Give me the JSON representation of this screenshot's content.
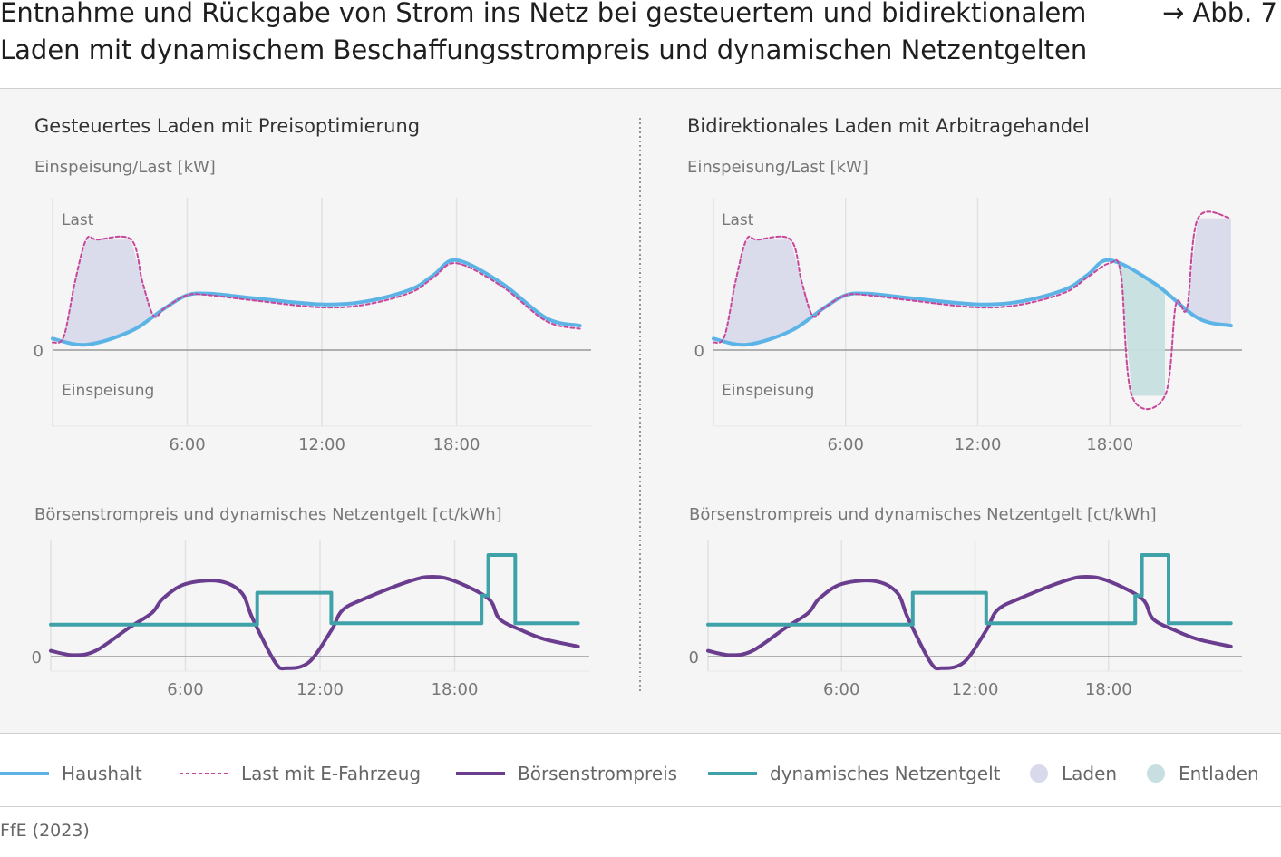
{
  "header": {
    "title_line1": "Entnahme und Rückgabe von Strom ins Netz bei gesteuertem und bidirektionalem",
    "title_line2": "Laden mit dynamischem Beschaffungsstrompreis und dynamischen Netzentgelten",
    "figure_ref": "→ Abb. 7"
  },
  "panels": [
    {
      "heading": "Gesteuertes Laden mit Preisoptimierung",
      "load_axis_label": "Einspeisung/Last [kW]",
      "price_axis_label": "Börsenstrompreis und dynamisches Netzentgelt [ct/kWh]"
    },
    {
      "heading": "Bidirektionales Laden mit Arbitragehandel",
      "load_axis_label": "Einspeisung/Last [kW]",
      "price_axis_label": "Börsenstrompreis und dynamisches Netzentgelt [ct/kWh]"
    }
  ],
  "annotations": {
    "last": "Last",
    "einspeisung": "Einspeisung",
    "zero": "0"
  },
  "legend": {
    "haushalt": "Haushalt",
    "last_ev": "Last mit E-Fahrzeug",
    "boersenstrompreis": "Börsenstrompreis",
    "netzentgelt": "dynamisches Netzentgelt",
    "laden": "Laden",
    "entladen": "Entladen"
  },
  "colors": {
    "haushalt": "#5bb4e5",
    "last_ev": "#c8479b",
    "boersenstrompreis": "#6a3d8f",
    "netzentgelt": "#3fa2a8",
    "laden": "#d8d9ea",
    "entladen": "#c7dfe0"
  },
  "source": "FfE (2023)",
  "chart_data": [
    {
      "type": "area",
      "panel": "Gesteuertes Laden mit Preisoptimierung",
      "ylabel": "Einspeisung/Last [kW]",
      "xticks": [
        "6:00",
        "12:00",
        "18:00"
      ],
      "xlim": [
        0,
        24
      ],
      "ylim": [
        -1.0,
        2.0
      ],
      "series": [
        {
          "name": "Haushalt",
          "x": [
            0,
            1.5,
            3.5,
            5,
            6,
            7,
            9,
            12,
            14,
            16,
            17,
            18,
            20,
            22,
            23.5
          ],
          "y": [
            0.15,
            0.07,
            0.25,
            0.55,
            0.72,
            0.74,
            0.68,
            0.6,
            0.64,
            0.8,
            0.99,
            1.18,
            0.88,
            0.42,
            0.32
          ]
        },
        {
          "name": "Last mit E-Fahrzeug",
          "x": [
            0,
            0.5,
            1,
            1.5,
            2,
            3.5,
            4,
            4.5,
            5,
            6,
            7,
            9,
            12,
            14,
            16,
            17,
            18,
            20,
            22,
            23.5
          ],
          "y": [
            0.1,
            0.18,
            0.9,
            1.45,
            1.45,
            1.45,
            0.9,
            0.45,
            0.55,
            0.72,
            0.72,
            0.65,
            0.56,
            0.6,
            0.76,
            0.96,
            1.14,
            0.84,
            0.38,
            0.28
          ]
        }
      ],
      "shaded": [
        {
          "name": "Laden",
          "x_range": [
            0.5,
            4.5
          ]
        }
      ]
    },
    {
      "type": "area",
      "panel": "Bidirektionales Laden mit Arbitragehandel",
      "ylabel": "Einspeisung/Last [kW]",
      "xticks": [
        "6:00",
        "12:00",
        "18:00"
      ],
      "xlim": [
        0,
        24
      ],
      "ylim": [
        -1.0,
        2.0
      ],
      "series": [
        {
          "name": "Haushalt",
          "x": [
            0,
            1.5,
            3.5,
            5,
            6,
            7,
            9,
            12,
            14,
            16,
            17,
            18,
            20,
            22,
            23.5
          ],
          "y": [
            0.15,
            0.07,
            0.25,
            0.55,
            0.72,
            0.74,
            0.68,
            0.6,
            0.64,
            0.8,
            0.99,
            1.18,
            0.88,
            0.42,
            0.32
          ]
        },
        {
          "name": "Last mit E-Fahrzeug",
          "x": [
            0,
            0.5,
            1,
            1.5,
            2,
            3.5,
            4,
            4.5,
            5,
            6,
            7,
            9,
            12,
            14,
            16,
            17,
            18,
            18.5,
            19,
            20.5,
            21,
            21.5,
            22,
            23.5
          ],
          "y": [
            0.1,
            0.18,
            0.9,
            1.45,
            1.45,
            1.45,
            0.9,
            0.45,
            0.55,
            0.72,
            0.72,
            0.65,
            0.56,
            0.6,
            0.76,
            0.96,
            1.14,
            1.0,
            -0.6,
            -0.6,
            0.6,
            0.55,
            1.73,
            1.73
          ]
        }
      ],
      "shaded": [
        {
          "name": "Laden",
          "x_range": [
            0.5,
            4.5
          ]
        },
        {
          "name": "Entladen",
          "x_range": [
            18.4,
            20.5
          ]
        },
        {
          "name": "Laden",
          "x_range": [
            21.5,
            23.5
          ]
        }
      ]
    },
    {
      "type": "line",
      "panel": "Gesteuertes Laden mit Preisoptimierung",
      "ylabel": "Börsenstrompreis und dynamisches Netzentgelt [ct/kWh]",
      "xticks": [
        "6:00",
        "12:00",
        "18:00"
      ],
      "xlim": [
        0,
        24
      ],
      "ylim": [
        -0.5,
        4.0
      ],
      "series": [
        {
          "name": "Börsenstrompreis",
          "x": [
            0,
            1,
            2,
            3.5,
            4.5,
            5,
            6,
            7.5,
            8.5,
            9,
            10,
            10.5,
            11.5,
            12.5,
            13,
            14,
            16,
            17,
            18,
            19.5,
            20,
            21,
            22,
            23.5
          ],
          "y": [
            0.2,
            0.05,
            0.2,
            1.0,
            1.5,
            2.0,
            2.5,
            2.6,
            2.2,
            1.3,
            -0.2,
            -0.4,
            -0.2,
            0.9,
            1.6,
            2.0,
            2.6,
            2.75,
            2.6,
            2.0,
            1.3,
            0.9,
            0.6,
            0.35
          ]
        },
        {
          "name": "dynamisches Netzentgelt",
          "x": [
            0,
            9.2,
            9.2,
            12.5,
            12.5,
            19.2,
            19.2,
            19.5,
            19.5,
            20.7,
            20.7,
            23.5
          ],
          "y": [
            1.1,
            1.1,
            2.2,
            2.2,
            1.15,
            1.15,
            2.1,
            2.1,
            3.5,
            3.5,
            1.15,
            1.15
          ]
        }
      ]
    },
    {
      "type": "line",
      "panel": "Bidirektionales Laden mit Arbitragehandel",
      "ylabel": "Börsenstrompreis und dynamisches Netzentgelt [ct/kWh]",
      "xticks": [
        "6:00",
        "12:00",
        "18:00"
      ],
      "xlim": [
        0,
        24
      ],
      "ylim": [
        -0.5,
        4.0
      ],
      "series": [
        {
          "name": "Börsenstrompreis",
          "x": [
            0,
            1,
            2,
            3.5,
            4.5,
            5,
            6,
            7.5,
            8.5,
            9,
            10,
            10.5,
            11.5,
            12.5,
            13,
            14,
            16,
            17,
            18,
            19.5,
            20,
            21,
            22,
            23.5
          ],
          "y": [
            0.2,
            0.05,
            0.2,
            1.0,
            1.5,
            2.0,
            2.5,
            2.6,
            2.2,
            1.3,
            -0.2,
            -0.4,
            -0.2,
            0.9,
            1.6,
            2.0,
            2.6,
            2.75,
            2.6,
            2.0,
            1.3,
            0.9,
            0.6,
            0.35
          ]
        },
        {
          "name": "dynamisches Netzentgelt",
          "x": [
            0,
            9.2,
            9.2,
            12.5,
            12.5,
            19.2,
            19.2,
            19.5,
            19.5,
            20.7,
            20.7,
            23.5
          ],
          "y": [
            1.1,
            1.1,
            2.2,
            2.2,
            1.15,
            1.15,
            2.1,
            2.1,
            3.5,
            3.5,
            1.15,
            1.15
          ]
        }
      ]
    }
  ]
}
